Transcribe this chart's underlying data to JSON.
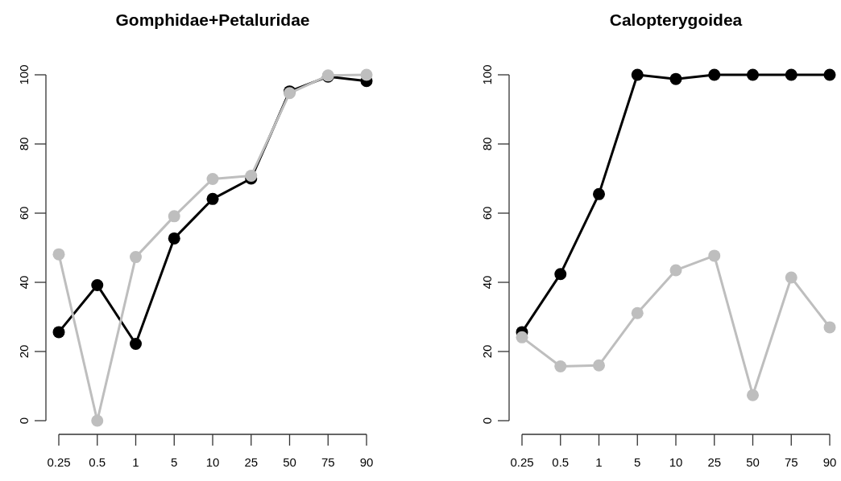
{
  "chart_data": [
    {
      "type": "line",
      "title": "Gomphidae+Petaluridae",
      "categories": [
        "0.25",
        "0.5",
        "1",
        "5",
        "10",
        "25",
        "50",
        "75",
        "90"
      ],
      "ylim": [
        0,
        100
      ],
      "yticks": [
        0,
        20,
        40,
        60,
        80,
        100
      ],
      "marker": "circle",
      "line_style": "solid",
      "grid": false,
      "series": [
        {
          "color": "#000000",
          "values": [
            25.6,
            39.2,
            22.2,
            52.7,
            64.1,
            70.0,
            95.2,
            99.5,
            98.2
          ]
        },
        {
          "color": "#bebebe",
          "values": [
            48.1,
            0,
            47.3,
            59.1,
            69.9,
            70.8,
            94.7,
            99.8,
            100
          ]
        }
      ]
    },
    {
      "type": "line",
      "title": "Calopterygoidea",
      "categories": [
        "0.25",
        "0.5",
        "1",
        "5",
        "10",
        "25",
        "50",
        "75",
        "90"
      ],
      "ylim": [
        0,
        100
      ],
      "yticks": [
        0,
        20,
        40,
        60,
        80,
        100
      ],
      "marker": "circle",
      "line_style": "solid",
      "grid": false,
      "series": [
        {
          "color": "#000000",
          "values": [
            25.6,
            42.4,
            65.5,
            100,
            98.8,
            100,
            100,
            100,
            100
          ]
        },
        {
          "color": "#bebebe",
          "values": [
            24.1,
            15.7,
            16.0,
            31.1,
            43.5,
            47.7,
            7.4,
            41.4,
            27.0
          ]
        }
      ]
    }
  ]
}
